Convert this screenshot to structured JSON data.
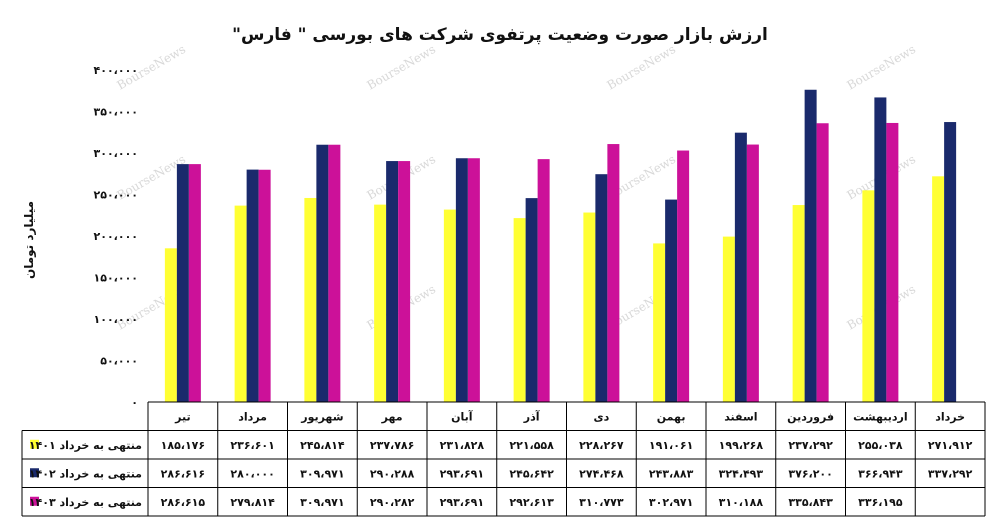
{
  "chart_data": {
    "type": "bar",
    "title": "ارزش بازار صورت وضعیت پرتفوی شرکت های بورسی \" فارس\"",
    "ylabel": "میلیارد تومان",
    "xlabel": "",
    "ylim": [
      0,
      400000
    ],
    "y_tick_labels": [
      "۰",
      "۵۰،۰۰۰",
      "۱۰۰،۰۰۰",
      "۱۵۰،۰۰۰",
      "۲۰۰،۰۰۰",
      "۲۵۰،۰۰۰",
      "۳۰۰،۰۰۰",
      "۳۵۰،۰۰۰",
      "۴۰۰،۰۰۰"
    ],
    "categories": [
      "تیر",
      "مرداد",
      "شهریور",
      "مهر",
      "آبان",
      "آذر",
      "دی",
      "بهمن",
      "اسفند",
      "فروردین",
      "اردیبهشت",
      "خرداد"
    ],
    "series": [
      {
        "name": "منتهی به خرداد ۱۴۰۱",
        "color": "#ffff33",
        "values": [
          185176,
          236601,
          245814,
          237786,
          231828,
          221558,
          228267,
          191061,
          199268,
          237292,
          255038,
          271912
        ],
        "labels": [
          "۱۸۵،۱۷۶",
          "۲۳۶،۶۰۱",
          "۲۴۵،۸۱۴",
          "۲۳۷،۷۸۶",
          "۲۳۱،۸۲۸",
          "۲۲۱،۵۵۸",
          "۲۲۸،۲۶۷",
          "۱۹۱،۰۶۱",
          "۱۹۹،۲۶۸",
          "۲۳۷،۲۹۲",
          "۲۵۵،۰۳۸",
          "۲۷۱،۹۱۲"
        ]
      },
      {
        "name": "منتهی به خرداد ۱۴۰۲",
        "color": "#1a2a6c",
        "values": [
          286616,
          280000,
          309971,
          290288,
          293691,
          245642,
          274468,
          243883,
          324493,
          376200,
          366943,
          337292
        ],
        "labels": [
          "۲۸۶،۶۱۶",
          "۲۸۰،۰۰۰",
          "۳۰۹،۹۷۱",
          "۲۹۰،۲۸۸",
          "۲۹۳،۶۹۱",
          "۲۴۵،۶۴۲",
          "۲۷۴،۴۶۸",
          "۲۴۳،۸۸۳",
          "۳۲۴،۴۹۳",
          "۳۷۶،۲۰۰",
          "۳۶۶،۹۴۳",
          "۳۳۷،۲۹۲"
        ]
      },
      {
        "name": "منتهی به خرداد ۱۴۰۳",
        "color": "#cc1199",
        "values": [
          286615,
          279814,
          309971,
          290282,
          293691,
          292613,
          310773,
          302971,
          310188,
          335843,
          336195,
          null
        ],
        "labels": [
          "۲۸۶،۶۱۵",
          "۲۷۹،۸۱۴",
          "۳۰۹،۹۷۱",
          "۲۹۰،۲۸۲",
          "۲۹۳،۶۹۱",
          "۲۹۲،۶۱۳",
          "۳۱۰،۷۷۳",
          "۳۰۲،۹۷۱",
          "۳۱۰،۱۸۸",
          "۳۳۵،۸۴۳",
          "۳۳۶،۱۹۵",
          ""
        ]
      }
    ],
    "gridlines": false,
    "legend": "data-table-left",
    "watermark": "BourseNews"
  }
}
